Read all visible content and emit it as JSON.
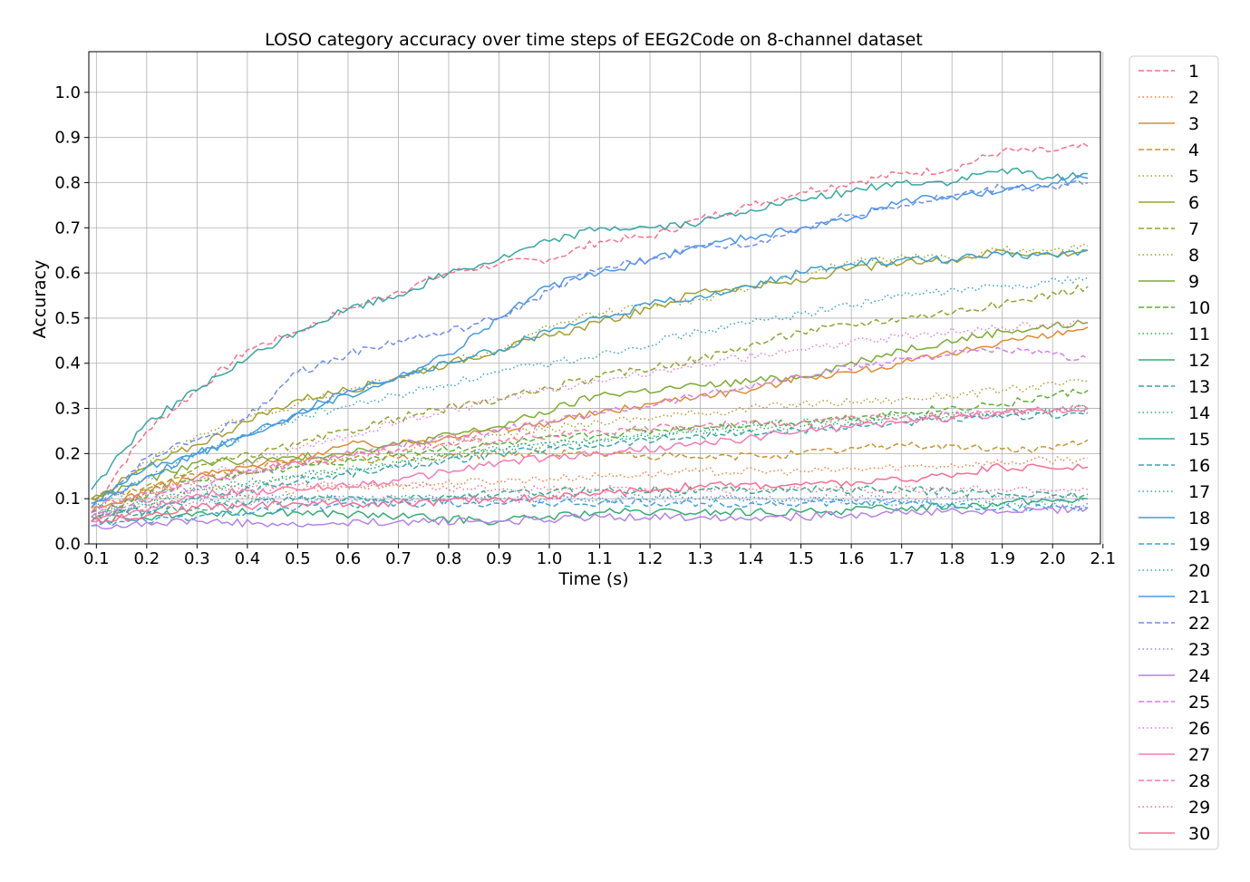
{
  "chart_data": {
    "type": "line",
    "title": "LOSO category accuracy over time steps of EEG2Code on 8-channel dataset",
    "xlabel": "Time (s)",
    "ylabel": "Accuracy",
    "xlim": [
      0.085,
      2.095
    ],
    "ylim": [
      0.0,
      1.09
    ],
    "xticks": [
      0.1,
      0.2,
      0.3,
      0.4,
      0.5,
      0.6,
      0.7,
      0.8,
      0.9,
      1.0,
      1.1,
      1.2,
      1.3,
      1.4,
      1.5,
      1.6,
      1.7,
      1.8,
      1.9,
      2.0,
      2.1
    ],
    "xtick_labels": [
      "0.1",
      "0.2",
      "0.3",
      "0.4",
      "0.5",
      "0.6",
      "0.7",
      "0.8",
      "0.9",
      "1.0",
      "1.1",
      "1.2",
      "1.3",
      "1.4",
      "1.5",
      "1.6",
      "1.7",
      "1.8",
      "1.9",
      "2.0",
      "2.1"
    ],
    "yticks": [
      0.0,
      0.1,
      0.2,
      0.3,
      0.4,
      0.5,
      0.6,
      0.7,
      0.8,
      0.9,
      1.0
    ],
    "ytick_labels": [
      "0.0",
      "0.1",
      "0.2",
      "0.3",
      "0.4",
      "0.5",
      "0.6",
      "0.7",
      "0.8",
      "0.9",
      "1.0"
    ],
    "grid": true,
    "legend_position": "outside-right",
    "x_start": 0.09,
    "x_end": 2.07,
    "series": [
      {
        "name": "1",
        "color": "#f77189",
        "dash": "dashed",
        "x": [
          0.09,
          0.2,
          0.3,
          0.4,
          0.5,
          0.6,
          0.7,
          0.8,
          0.9,
          1.0,
          1.1,
          1.2,
          1.3,
          1.4,
          1.5,
          1.6,
          1.7,
          1.8,
          1.9,
          2.0,
          2.07
        ],
        "values": [
          0.08,
          0.25,
          0.34,
          0.43,
          0.47,
          0.52,
          0.56,
          0.6,
          0.62,
          0.63,
          0.67,
          0.68,
          0.72,
          0.75,
          0.78,
          0.8,
          0.82,
          0.83,
          0.87,
          0.87,
          0.88
        ]
      },
      {
        "name": "2",
        "color": "#f37f3b",
        "dash": "dotted",
        "x": [
          0.09,
          0.3,
          0.5,
          0.7,
          0.9,
          1.1,
          1.3,
          1.5,
          1.7,
          1.9,
          2.07
        ],
        "values": [
          0.06,
          0.1,
          0.12,
          0.13,
          0.14,
          0.15,
          0.16,
          0.16,
          0.17,
          0.18,
          0.19
        ]
      },
      {
        "name": "3",
        "color": "#e08b32",
        "dash": "solid",
        "x": [
          0.09,
          0.2,
          0.3,
          0.4,
          0.5,
          0.6,
          0.7,
          0.8,
          0.9,
          1.0,
          1.1,
          1.2,
          1.3,
          1.4,
          1.5,
          1.6,
          1.7,
          1.8,
          1.9,
          2.0,
          2.07
        ],
        "values": [
          0.07,
          0.12,
          0.15,
          0.17,
          0.19,
          0.22,
          0.22,
          0.24,
          0.25,
          0.27,
          0.29,
          0.31,
          0.33,
          0.34,
          0.37,
          0.38,
          0.4,
          0.42,
          0.45,
          0.46,
          0.48
        ]
      },
      {
        "name": "4",
        "color": "#c79530",
        "dash": "dashed",
        "x": [
          0.09,
          0.3,
          0.5,
          0.7,
          0.9,
          1.1,
          1.3,
          1.5,
          1.7,
          1.9,
          2.0,
          2.07
        ],
        "values": [
          0.1,
          0.15,
          0.18,
          0.19,
          0.2,
          0.2,
          0.19,
          0.2,
          0.22,
          0.21,
          0.21,
          0.23
        ]
      },
      {
        "name": "5",
        "color": "#b69b31",
        "dash": "dotted",
        "x": [
          0.09,
          0.3,
          0.5,
          0.7,
          0.9,
          1.1,
          1.3,
          1.5,
          1.7,
          1.9,
          2.07
        ],
        "values": [
          0.08,
          0.14,
          0.18,
          0.21,
          0.24,
          0.27,
          0.29,
          0.31,
          0.32,
          0.34,
          0.36
        ]
      },
      {
        "name": "6",
        "color": "#a39f31",
        "dash": "solid",
        "x": [
          0.09,
          0.2,
          0.3,
          0.4,
          0.5,
          0.6,
          0.7,
          0.8,
          0.9,
          1.0,
          1.1,
          1.2,
          1.3,
          1.4,
          1.5,
          1.6,
          1.7,
          1.8,
          1.9,
          2.0,
          2.07
        ],
        "values": [
          0.1,
          0.17,
          0.22,
          0.27,
          0.32,
          0.34,
          0.37,
          0.4,
          0.43,
          0.46,
          0.49,
          0.52,
          0.56,
          0.57,
          0.58,
          0.61,
          0.62,
          0.63,
          0.65,
          0.64,
          0.65
        ]
      },
      {
        "name": "7",
        "color": "#93a331",
        "dash": "dashed",
        "x": [
          0.09,
          0.3,
          0.5,
          0.7,
          0.9,
          1.1,
          1.3,
          1.5,
          1.7,
          1.9,
          2.07
        ],
        "values": [
          0.05,
          0.17,
          0.22,
          0.28,
          0.32,
          0.37,
          0.41,
          0.47,
          0.5,
          0.53,
          0.57
        ]
      },
      {
        "name": "8",
        "color": "#a0a030",
        "dash": "dotted",
        "x": [
          0.09,
          0.2,
          0.3,
          0.4,
          0.5,
          0.6,
          0.7,
          0.8,
          0.9,
          1.0,
          1.1,
          1.2,
          1.3,
          1.4,
          1.5,
          1.6,
          1.7,
          1.8,
          1.9,
          2.0,
          2.07
        ],
        "values": [
          0.09,
          0.18,
          0.24,
          0.28,
          0.31,
          0.34,
          0.37,
          0.4,
          0.43,
          0.48,
          0.51,
          0.53,
          0.54,
          0.57,
          0.6,
          0.62,
          0.64,
          0.63,
          0.65,
          0.65,
          0.66
        ]
      },
      {
        "name": "9",
        "color": "#7bac32",
        "dash": "solid",
        "x": [
          0.09,
          0.3,
          0.5,
          0.7,
          0.9,
          1.1,
          1.3,
          1.5,
          1.7,
          1.9,
          2.07
        ],
        "values": [
          0.1,
          0.18,
          0.19,
          0.22,
          0.26,
          0.33,
          0.35,
          0.37,
          0.43,
          0.47,
          0.49
        ]
      },
      {
        "name": "10",
        "color": "#5ab036",
        "dash": "dashed",
        "x": [
          0.09,
          0.3,
          0.5,
          0.7,
          0.9,
          1.1,
          1.3,
          1.5,
          1.7,
          1.9,
          2.07
        ],
        "values": [
          0.07,
          0.14,
          0.17,
          0.2,
          0.22,
          0.24,
          0.26,
          0.27,
          0.29,
          0.31,
          0.34
        ]
      },
      {
        "name": "11",
        "color": "#34b04f",
        "dash": "dotted",
        "x": [
          0.09,
          0.3,
          0.5,
          0.7,
          0.9,
          1.1,
          1.3,
          1.5,
          1.7,
          1.9,
          2.07
        ],
        "values": [
          0.06,
          0.12,
          0.15,
          0.18,
          0.21,
          0.23,
          0.25,
          0.26,
          0.28,
          0.29,
          0.3
        ]
      },
      {
        "name": "12",
        "color": "#35ad73",
        "dash": "solid",
        "x": [
          0.09,
          0.3,
          0.5,
          0.7,
          0.9,
          1.1,
          1.3,
          1.5,
          1.7,
          1.9,
          2.07
        ],
        "values": [
          0.05,
          0.07,
          0.07,
          0.06,
          0.05,
          0.07,
          0.07,
          0.07,
          0.08,
          0.09,
          0.1
        ]
      },
      {
        "name": "13",
        "color": "#36ab89",
        "dash": "dashed",
        "x": [
          0.09,
          0.3,
          0.5,
          0.7,
          0.9,
          1.1,
          1.3,
          1.5,
          1.7,
          1.9,
          2.07
        ],
        "values": [
          0.06,
          0.08,
          0.1,
          0.1,
          0.11,
          0.12,
          0.12,
          0.12,
          0.12,
          0.11,
          0.11
        ]
      },
      {
        "name": "14",
        "color": "#37a998",
        "dash": "dotted",
        "x": [
          0.09,
          0.3,
          0.5,
          0.7,
          0.9,
          1.1,
          1.3,
          1.5,
          1.7,
          1.9,
          2.07
        ],
        "values": [
          0.06,
          0.12,
          0.15,
          0.18,
          0.21,
          0.23,
          0.25,
          0.27,
          0.28,
          0.29,
          0.3
        ]
      },
      {
        "name": "15",
        "color": "#38a7a4",
        "dash": "solid",
        "x": [
          0.09,
          0.2,
          0.3,
          0.4,
          0.5,
          0.6,
          0.7,
          0.8,
          0.9,
          1.0,
          1.1,
          1.2,
          1.3,
          1.4,
          1.5,
          1.6,
          1.7,
          1.8,
          1.9,
          2.0,
          2.07
        ],
        "values": [
          0.12,
          0.27,
          0.34,
          0.41,
          0.47,
          0.52,
          0.55,
          0.6,
          0.63,
          0.67,
          0.7,
          0.7,
          0.71,
          0.74,
          0.76,
          0.78,
          0.8,
          0.8,
          0.83,
          0.81,
          0.82
        ]
      },
      {
        "name": "16",
        "color": "#39a5b1",
        "dash": "dashed",
        "x": [
          0.09,
          0.3,
          0.5,
          0.7,
          0.9,
          1.1,
          1.3,
          1.5,
          1.7,
          1.9,
          2.07
        ],
        "values": [
          0.05,
          0.1,
          0.14,
          0.17,
          0.2,
          0.22,
          0.24,
          0.25,
          0.27,
          0.28,
          0.29
        ]
      },
      {
        "name": "17",
        "color": "#3ba3bf",
        "dash": "dotted",
        "x": [
          0.09,
          0.3,
          0.5,
          0.7,
          0.9,
          1.1,
          1.3,
          1.5,
          1.7,
          1.9,
          2.07
        ],
        "values": [
          0.07,
          0.1,
          0.1,
          0.1,
          0.1,
          0.1,
          0.1,
          0.1,
          0.09,
          0.09,
          0.09
        ]
      },
      {
        "name": "18",
        "color": "#3ca0d0",
        "dash": "solid",
        "x": [
          0.09,
          0.2,
          0.3,
          0.4,
          0.5,
          0.6,
          0.7,
          0.8,
          0.9,
          1.0,
          1.1,
          1.2,
          1.3,
          1.4,
          1.5,
          1.6,
          1.7,
          1.8,
          1.9,
          2.0,
          2.07
        ],
        "values": [
          0.09,
          0.17,
          0.2,
          0.24,
          0.29,
          0.33,
          0.37,
          0.4,
          0.43,
          0.47,
          0.5,
          0.53,
          0.55,
          0.57,
          0.6,
          0.62,
          0.63,
          0.63,
          0.64,
          0.64,
          0.65
        ]
      },
      {
        "name": "19",
        "color": "#40a0e3",
        "dash": "dashed",
        "x": [
          0.09,
          0.3,
          0.5,
          0.7,
          0.9,
          1.1,
          1.3,
          1.5,
          1.7,
          1.9,
          2.07
        ],
        "values": [
          0.04,
          0.06,
          0.08,
          0.09,
          0.09,
          0.09,
          0.09,
          0.09,
          0.09,
          0.08,
          0.08
        ]
      },
      {
        "name": "20",
        "color": "#3ba3bf",
        "dash": "dotted",
        "x": [
          0.09,
          0.3,
          0.5,
          0.7,
          0.9,
          1.1,
          1.3,
          1.5,
          1.7,
          1.9,
          2.07
        ],
        "values": [
          0.08,
          0.2,
          0.28,
          0.33,
          0.38,
          0.42,
          0.47,
          0.51,
          0.55,
          0.57,
          0.59
        ]
      },
      {
        "name": "21",
        "color": "#4a98e7",
        "dash": "solid",
        "x": [
          0.09,
          0.2,
          0.3,
          0.4,
          0.5,
          0.6,
          0.7,
          0.8,
          0.9,
          1.0,
          1.1,
          1.2,
          1.3,
          1.4,
          1.5,
          1.6,
          1.7,
          1.8,
          1.9,
          2.0,
          2.07
        ],
        "values": [
          0.08,
          0.15,
          0.2,
          0.24,
          0.29,
          0.34,
          0.37,
          0.42,
          0.5,
          0.57,
          0.6,
          0.63,
          0.66,
          0.68,
          0.7,
          0.72,
          0.76,
          0.77,
          0.78,
          0.8,
          0.81
        ]
      },
      {
        "name": "22",
        "color": "#6f8de8",
        "dash": "dashed",
        "x": [
          0.09,
          0.2,
          0.3,
          0.4,
          0.5,
          0.6,
          0.7,
          0.8,
          0.9,
          1.0,
          1.1,
          1.2,
          1.3,
          1.4,
          1.5,
          1.6,
          1.7,
          1.8,
          1.9,
          2.0,
          2.07
        ],
        "values": [
          0.07,
          0.19,
          0.23,
          0.28,
          0.38,
          0.42,
          0.45,
          0.47,
          0.5,
          0.56,
          0.61,
          0.63,
          0.66,
          0.66,
          0.7,
          0.73,
          0.75,
          0.77,
          0.79,
          0.79,
          0.8
        ]
      },
      {
        "name": "23",
        "color": "#948ae8",
        "dash": "dotted",
        "x": [
          0.09,
          0.3,
          0.5,
          0.7,
          0.9,
          1.1,
          1.3,
          1.5,
          1.7,
          1.9,
          2.07
        ],
        "values": [
          0.06,
          0.09,
          0.1,
          0.1,
          0.1,
          0.1,
          0.1,
          0.1,
          0.1,
          0.1,
          0.1
        ]
      },
      {
        "name": "24",
        "color": "#b482e8",
        "dash": "solid",
        "x": [
          0.09,
          0.3,
          0.5,
          0.7,
          0.9,
          1.1,
          1.3,
          1.5,
          1.7,
          1.9,
          2.07
        ],
        "values": [
          0.04,
          0.05,
          0.04,
          0.05,
          0.05,
          0.06,
          0.06,
          0.06,
          0.07,
          0.07,
          0.08
        ]
      },
      {
        "name": "25",
        "color": "#d47ee6",
        "dash": "dashed",
        "x": [
          0.09,
          0.3,
          0.5,
          0.7,
          0.9,
          1.1,
          1.3,
          1.5,
          1.7,
          1.9,
          2.07
        ],
        "values": [
          0.06,
          0.13,
          0.18,
          0.22,
          0.25,
          0.29,
          0.33,
          0.37,
          0.41,
          0.43,
          0.41
        ]
      },
      {
        "name": "26",
        "color": "#e87bce",
        "dash": "dotted",
        "x": [
          0.09,
          0.3,
          0.5,
          0.7,
          0.9,
          1.1,
          1.3,
          1.5,
          1.7,
          1.9,
          2.07
        ],
        "values": [
          0.07,
          0.15,
          0.21,
          0.27,
          0.32,
          0.36,
          0.4,
          0.43,
          0.46,
          0.48,
          0.49
        ]
      },
      {
        "name": "27",
        "color": "#f37bb4",
        "dash": "solid",
        "x": [
          0.09,
          0.3,
          0.5,
          0.7,
          0.9,
          1.1,
          1.3,
          1.5,
          1.7,
          1.9,
          2.07
        ],
        "values": [
          0.05,
          0.11,
          0.12,
          0.14,
          0.18,
          0.2,
          0.22,
          0.25,
          0.27,
          0.29,
          0.3
        ]
      },
      {
        "name": "28",
        "color": "#f67ba0",
        "dash": "dashed",
        "x": [
          0.09,
          0.3,
          0.5,
          0.7,
          0.9,
          1.1,
          1.3,
          1.5,
          1.7,
          1.9,
          2.07
        ],
        "values": [
          0.08,
          0.14,
          0.18,
          0.21,
          0.23,
          0.25,
          0.26,
          0.27,
          0.28,
          0.29,
          0.3
        ]
      },
      {
        "name": "29",
        "color": "#f77189",
        "dash": "dotted",
        "x": [
          0.09,
          0.3,
          0.5,
          0.7,
          0.9,
          1.1,
          1.3,
          1.5,
          1.7,
          1.9,
          2.07
        ],
        "values": [
          0.07,
          0.12,
          0.13,
          0.13,
          0.12,
          0.12,
          0.12,
          0.12,
          0.12,
          0.12,
          0.12
        ]
      },
      {
        "name": "30",
        "color": "#f66f92",
        "dash": "solid",
        "x": [
          0.09,
          0.3,
          0.5,
          0.7,
          0.9,
          1.1,
          1.3,
          1.5,
          1.7,
          1.9,
          2.07
        ],
        "values": [
          0.05,
          0.08,
          0.09,
          0.09,
          0.1,
          0.11,
          0.13,
          0.13,
          0.14,
          0.17,
          0.17
        ]
      }
    ]
  }
}
